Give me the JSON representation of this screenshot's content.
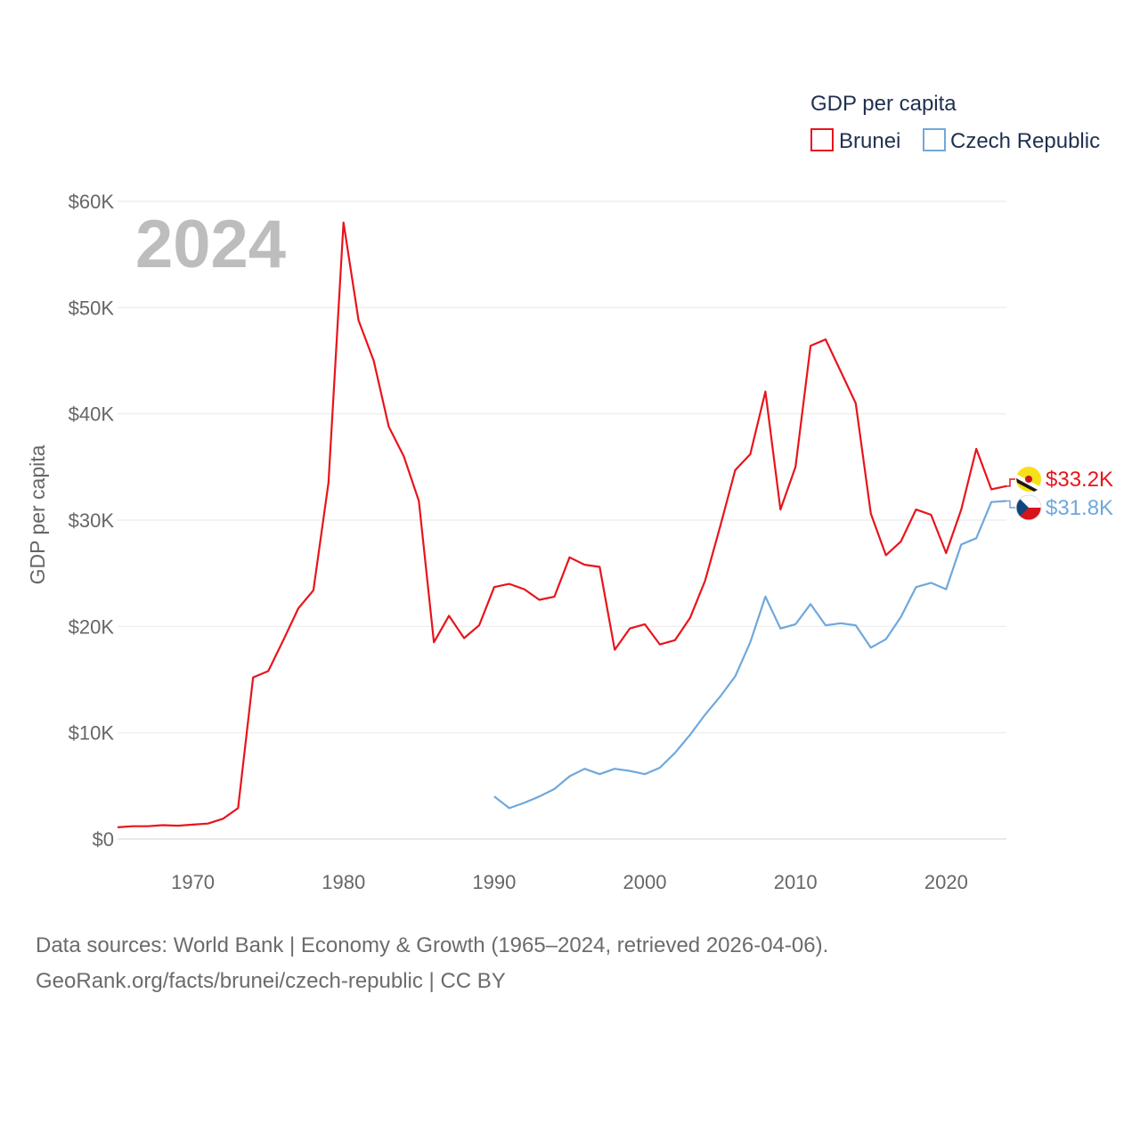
{
  "chart_data": {
    "type": "line",
    "title": "GDP per capita",
    "ylabel": "GDP per capita",
    "xlabel": "",
    "year_label": "2024",
    "xlim": [
      1965,
      2024
    ],
    "ylim": [
      0,
      60000
    ],
    "x_ticks": [
      1970,
      1980,
      1990,
      2000,
      2010,
      2020
    ],
    "y_ticks": [
      {
        "value": 0,
        "label": "$0"
      },
      {
        "value": 10000,
        "label": "$10K"
      },
      {
        "value": 20000,
        "label": "$20K"
      },
      {
        "value": 30000,
        "label": "$30K"
      },
      {
        "value": 40000,
        "label": "$40K"
      },
      {
        "value": 50000,
        "label": "$50K"
      },
      {
        "value": 60000,
        "label": "$60K"
      }
    ],
    "grid": true,
    "legend_position": "top-right",
    "series": [
      {
        "name": "Brunei",
        "color": "#e8141c",
        "end_label": "$33.2K",
        "flag_icon": "brunei-flag-icon",
        "points": [
          [
            1965,
            1100
          ],
          [
            1966,
            1200
          ],
          [
            1967,
            1200
          ],
          [
            1968,
            1300
          ],
          [
            1969,
            1250
          ],
          [
            1970,
            1350
          ],
          [
            1971,
            1450
          ],
          [
            1972,
            1900
          ],
          [
            1973,
            2900
          ],
          [
            1974,
            15200
          ],
          [
            1975,
            15800
          ],
          [
            1976,
            18700
          ],
          [
            1977,
            21700
          ],
          [
            1978,
            23400
          ],
          [
            1979,
            33500
          ],
          [
            1980,
            58000
          ],
          [
            1981,
            48800
          ],
          [
            1982,
            45000
          ],
          [
            1983,
            38800
          ],
          [
            1984,
            36000
          ],
          [
            1985,
            31800
          ],
          [
            1986,
            18500
          ],
          [
            1987,
            21000
          ],
          [
            1988,
            18900
          ],
          [
            1989,
            20100
          ],
          [
            1990,
            23700
          ],
          [
            1991,
            24000
          ],
          [
            1992,
            23500
          ],
          [
            1993,
            22500
          ],
          [
            1994,
            22800
          ],
          [
            1995,
            26500
          ],
          [
            1996,
            25800
          ],
          [
            1997,
            25600
          ],
          [
            1998,
            17800
          ],
          [
            1999,
            19800
          ],
          [
            2000,
            20200
          ],
          [
            2001,
            18300
          ],
          [
            2002,
            18700
          ],
          [
            2003,
            20800
          ],
          [
            2004,
            24300
          ],
          [
            2005,
            29400
          ],
          [
            2006,
            34700
          ],
          [
            2007,
            36200
          ],
          [
            2008,
            42100
          ],
          [
            2009,
            31000
          ],
          [
            2010,
            35000
          ],
          [
            2011,
            46400
          ],
          [
            2012,
            47000
          ],
          [
            2013,
            44000
          ],
          [
            2014,
            41000
          ],
          [
            2015,
            30600
          ],
          [
            2016,
            26700
          ],
          [
            2017,
            28000
          ],
          [
            2018,
            31000
          ],
          [
            2019,
            30500
          ],
          [
            2020,
            26900
          ],
          [
            2021,
            31000
          ],
          [
            2022,
            36700
          ],
          [
            2023,
            32900
          ],
          [
            2024,
            33200
          ]
        ]
      },
      {
        "name": "Czech Republic",
        "color": "#6fa8dc",
        "end_label": "$31.8K",
        "flag_icon": "czech-flag-icon",
        "points": [
          [
            1990,
            4000
          ],
          [
            1991,
            2900
          ],
          [
            1992,
            3400
          ],
          [
            1993,
            4000
          ],
          [
            1994,
            4700
          ],
          [
            1995,
            5900
          ],
          [
            1996,
            6600
          ],
          [
            1997,
            6100
          ],
          [
            1998,
            6600
          ],
          [
            1999,
            6400
          ],
          [
            2000,
            6100
          ],
          [
            2001,
            6700
          ],
          [
            2002,
            8100
          ],
          [
            2003,
            9800
          ],
          [
            2004,
            11700
          ],
          [
            2005,
            13400
          ],
          [
            2006,
            15300
          ],
          [
            2007,
            18500
          ],
          [
            2008,
            22800
          ],
          [
            2009,
            19800
          ],
          [
            2010,
            20200
          ],
          [
            2011,
            22100
          ],
          [
            2012,
            20100
          ],
          [
            2013,
            20300
          ],
          [
            2014,
            20100
          ],
          [
            2015,
            18000
          ],
          [
            2016,
            18800
          ],
          [
            2017,
            20900
          ],
          [
            2018,
            23700
          ],
          [
            2019,
            24100
          ],
          [
            2020,
            23500
          ],
          [
            2021,
            27700
          ],
          [
            2022,
            28300
          ],
          [
            2023,
            31700
          ],
          [
            2024,
            31800
          ]
        ]
      }
    ]
  },
  "footer": {
    "source_line": "Data sources: World Bank | Economy & Growth (1965–2024, retrieved 2026-04-06).",
    "url_line": "GeoRank.org/facts/brunei/czech-republic | CC BY"
  }
}
